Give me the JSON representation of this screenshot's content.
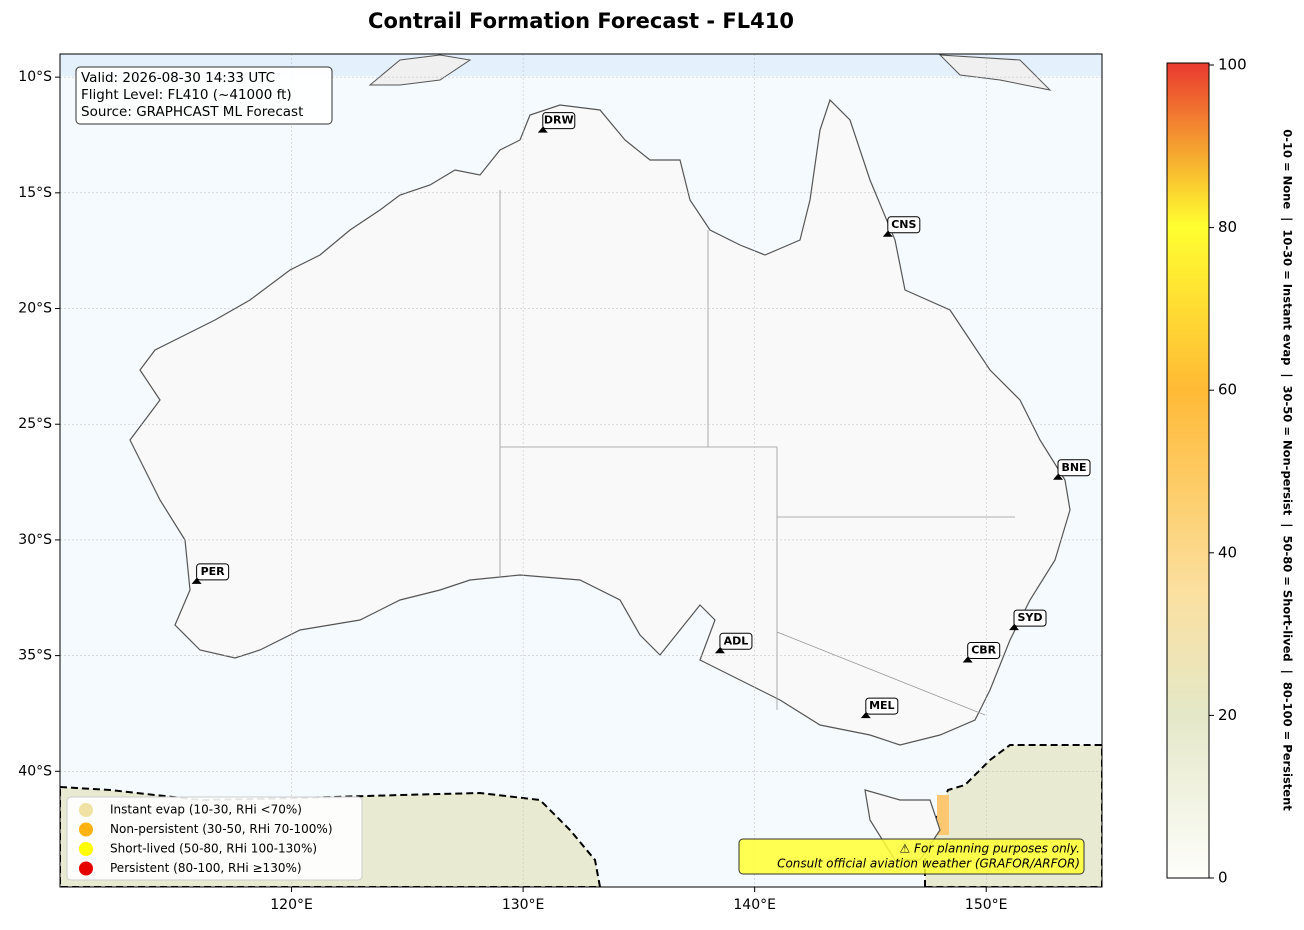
{
  "title": "Contrail Formation Forecast - FL410",
  "map": {
    "lonlim": [
      110,
      155
    ],
    "latlim": [
      -45,
      -9
    ],
    "lonticks": [
      {
        "value": 120,
        "label": "120°E"
      },
      {
        "value": 130,
        "label": "130°E"
      },
      {
        "value": 140,
        "label": "140°E"
      },
      {
        "value": 150,
        "label": "150°E"
      }
    ],
    "latticks": [
      {
        "value": -10,
        "label": "10°S"
      },
      {
        "value": -15,
        "label": "15°S"
      },
      {
        "value": -20,
        "label": "20°S"
      },
      {
        "value": -25,
        "label": "25°S"
      },
      {
        "value": -30,
        "label": "30°S"
      },
      {
        "value": -35,
        "label": "35°S"
      },
      {
        "value": -40,
        "label": "40°S"
      }
    ],
    "grid": true
  },
  "info": [
    "Valid: 2026-08-30 14:33 UTC",
    "Flight Level: FL410 (~41000 ft)",
    "Source: GRAPHCAST ML Forecast"
  ],
  "airports": [
    {
      "code": "DRW",
      "lon": 130.85,
      "lat": -12.4
    },
    {
      "code": "CNS",
      "lon": 145.75,
      "lat": -16.9
    },
    {
      "code": "BNE",
      "lon": 153.1,
      "lat": -27.4
    },
    {
      "code": "PER",
      "lon": 115.9,
      "lat": -31.9
    },
    {
      "code": "ADL",
      "lon": 138.5,
      "lat": -34.9
    },
    {
      "code": "SYD",
      "lon": 151.2,
      "lat": -33.9
    },
    {
      "code": "CBR",
      "lon": 149.2,
      "lat": -35.3
    },
    {
      "code": "MEL",
      "lon": 144.8,
      "lat": -37.7
    }
  ],
  "legend": [
    {
      "label": "Instant evap (10-30, RHi <70%)",
      "color": "#f0e2a2"
    },
    {
      "label": "Non-persistent (30-50, RHi 70-100%)",
      "color": "#ffb310"
    },
    {
      "label": "Short-lived (50-80, RHi 100-130%)",
      "color": "#ffff00"
    },
    {
      "label": "Persistent (80-100, RHi ≥130%)",
      "color": "#e60000"
    }
  ],
  "disclaimer": [
    "⚠ For planning purposes only.",
    "Consult official aviation weather (GRAFOR/ARFOR)"
  ],
  "colorbar": {
    "lim": [
      0,
      100
    ],
    "ticks": [
      0,
      20,
      40,
      60,
      80,
      100
    ],
    "label": "0-10 = None  |  10-30 = Instant evap  |  30-50 = Non-persist  |  50-80 = Short-lived  |  80-100 = Persistent"
  }
}
